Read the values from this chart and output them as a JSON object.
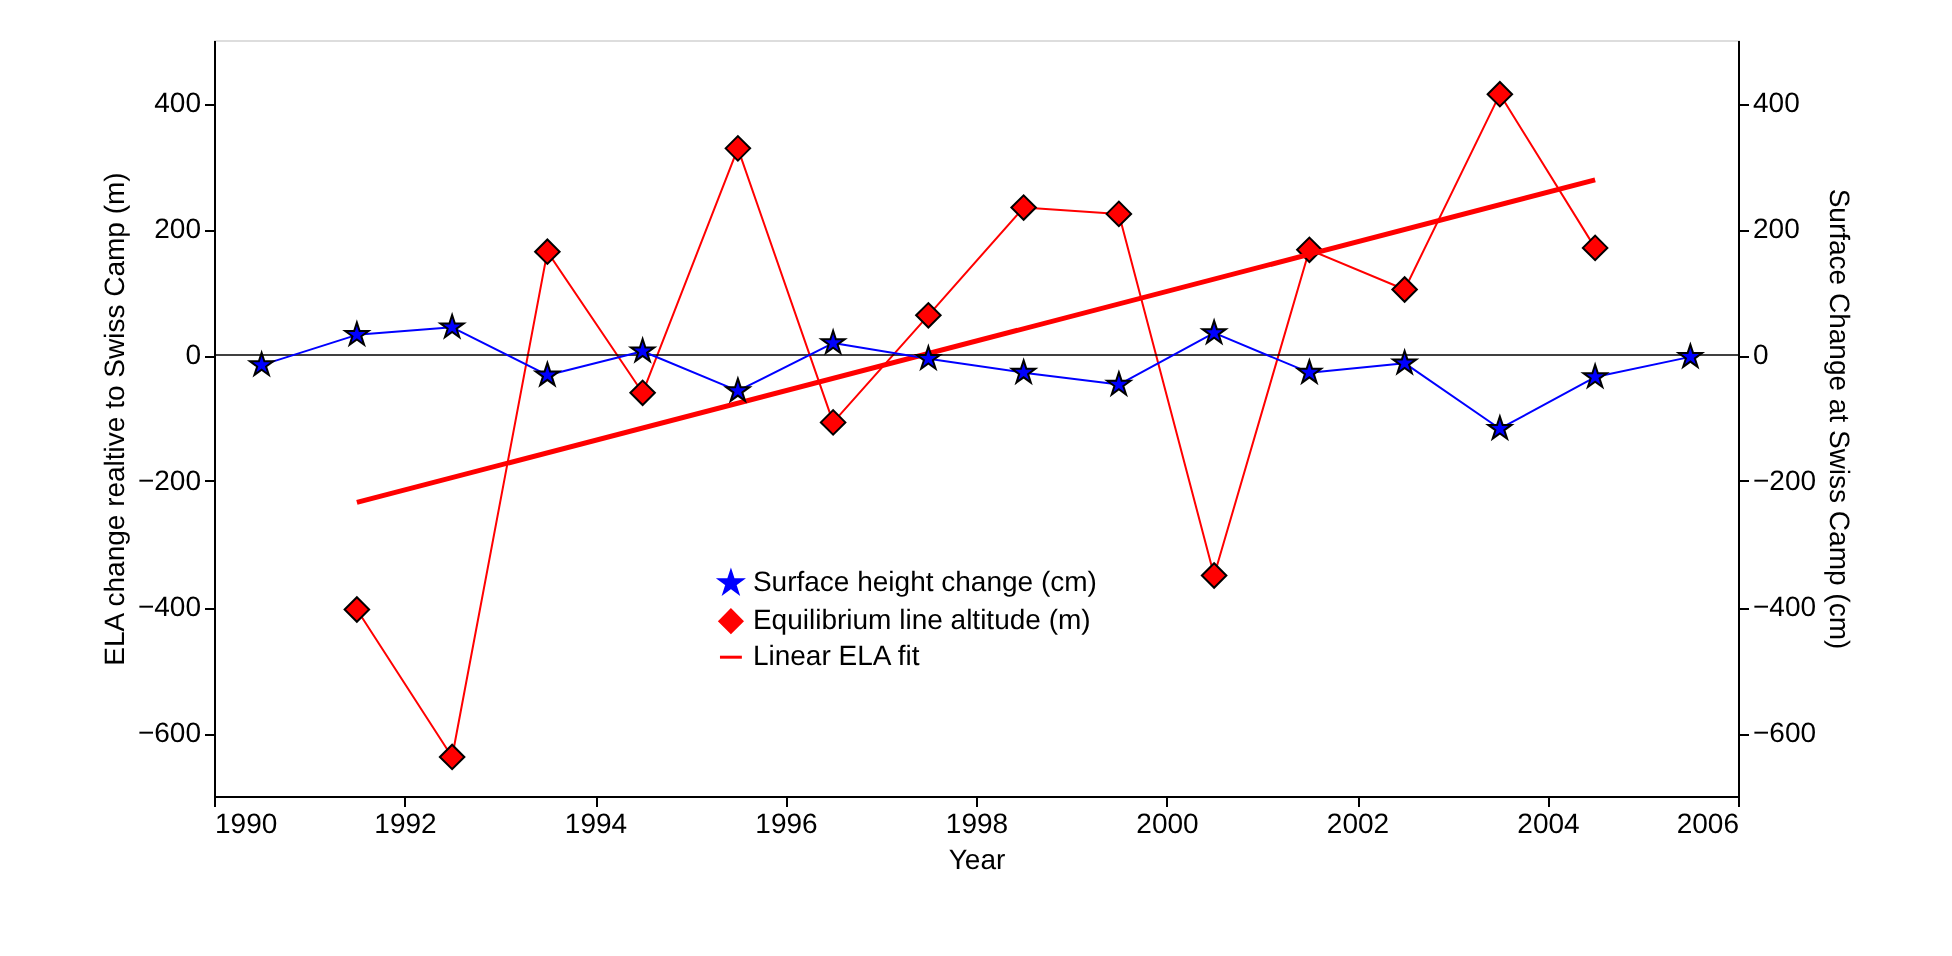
{
  "chart_data": {
    "type": "line",
    "xlabel": "Year",
    "ylabel": "ELA change realtive to Swiss Camp (m)",
    "y2label": "Surface Change at Swiss Camp (cm)",
    "xlim": [
      1990,
      2006
    ],
    "xticks": [
      1990,
      1992,
      1994,
      1996,
      1998,
      2000,
      2002,
      2004,
      2006
    ],
    "ylim": [
      -700,
      500
    ],
    "yticks": [
      -600,
      -400,
      -200,
      0,
      200,
      400
    ],
    "y2lim": [
      -700,
      500
    ],
    "y2ticks": [
      -600,
      -400,
      -200,
      0,
      200,
      400
    ],
    "legend": "bottom",
    "grid": false,
    "line_style": "solid",
    "ref_lines": [
      {
        "axis": "y",
        "value": 0,
        "color": "#000000"
      }
    ],
    "series": [
      {
        "name": "Surface height change (cm)",
        "color": "#0000ff",
        "marker": "star",
        "axis": "y2",
        "x": [
          1990.5,
          1991.5,
          1992.5,
          1993.5,
          1994.5,
          1995.5,
          1996.5,
          1997.5,
          1998.5,
          1999.5,
          2000.5,
          2001.5,
          2002.5,
          2003.5,
          2004.5,
          2005.5
        ],
        "values": [
          -16,
          32,
          44,
          -32,
          6,
          -57,
          19,
          -6,
          -28,
          -47,
          35,
          -28,
          -13,
          -117,
          -35,
          -3
        ]
      },
      {
        "name": "Equilibrium line altitude (m)",
        "color": "#ff0000",
        "marker": "diamond",
        "x": [
          1991.5,
          1992.5,
          1993.5,
          1994.5,
          1995.5,
          1996.5,
          1997.5,
          1998.5,
          1999.5,
          2000.5,
          2001.5,
          2002.5,
          2003.5,
          2004.5
        ],
        "values": [
          -404,
          -638,
          164,
          -60,
          328,
          -107,
          63,
          234,
          224,
          -350,
          167,
          104,
          414,
          170
        ]
      },
      {
        "name": "Linear ELA fit",
        "color": "#ff0000",
        "marker": "none",
        "x": [
          1991.5,
          2004.5
        ],
        "values": [
          -234,
          278
        ]
      }
    ]
  }
}
